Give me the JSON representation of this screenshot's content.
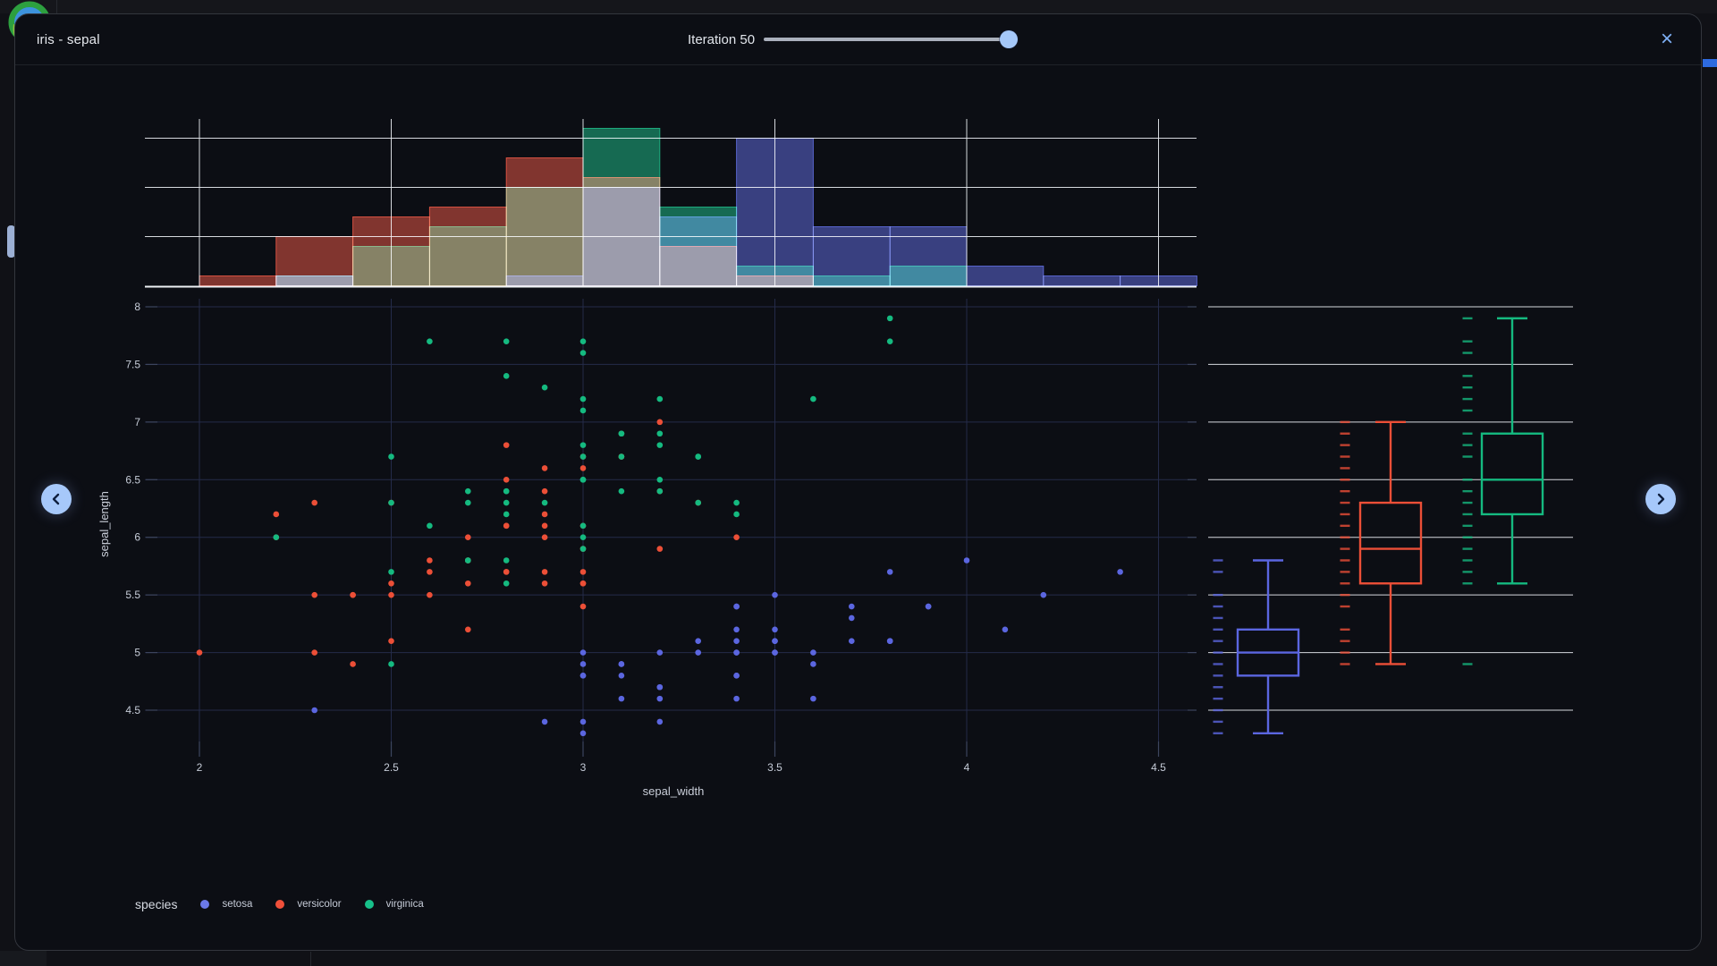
{
  "header": {
    "title": "iris - sepal",
    "iteration": {
      "label": "Iteration 50",
      "value": 50,
      "min": 0,
      "max": 50
    },
    "close_label": "×"
  },
  "nav": {
    "prev_label": "‹",
    "next_label": "›"
  },
  "legend": {
    "title": "species",
    "items": [
      {
        "label": "setosa",
        "color": "#6b79e8"
      },
      {
        "label": "versicolor",
        "color": "#f0503a"
      },
      {
        "label": "virginica",
        "color": "#17c08a"
      }
    ]
  },
  "chart_data": {
    "type": "scatter",
    "title": "iris - sepal",
    "xlabel": "sepal_width",
    "ylabel": "sepal_length",
    "x_ticks": [
      2,
      2.5,
      3,
      3.5,
      4,
      4.5
    ],
    "y_ticks": [
      4.5,
      5,
      5.5,
      6,
      6.5,
      7,
      7.5,
      8
    ],
    "xlim": [
      1.88,
      4.6
    ],
    "ylim": [
      4.23,
      8.07
    ],
    "grid": true,
    "legend_position": "bottom",
    "series": [
      {
        "name": "setosa",
        "color": "#5b66e0",
        "points": [
          [
            3.5,
            5.1
          ],
          [
            3.0,
            4.9
          ],
          [
            3.2,
            4.7
          ],
          [
            3.1,
            4.6
          ],
          [
            3.6,
            5.0
          ],
          [
            3.9,
            5.4
          ],
          [
            3.4,
            4.6
          ],
          [
            3.4,
            5.0
          ],
          [
            2.9,
            4.4
          ],
          [
            3.1,
            4.9
          ],
          [
            3.7,
            5.4
          ],
          [
            3.4,
            4.8
          ],
          [
            3.0,
            4.8
          ],
          [
            3.0,
            4.3
          ],
          [
            4.0,
            5.8
          ],
          [
            4.4,
            5.7
          ],
          [
            3.9,
            5.4
          ],
          [
            3.5,
            5.1
          ],
          [
            3.8,
            5.7
          ],
          [
            3.8,
            5.1
          ],
          [
            3.4,
            5.4
          ],
          [
            3.7,
            5.1
          ],
          [
            3.6,
            4.6
          ],
          [
            3.3,
            5.1
          ],
          [
            3.4,
            4.8
          ],
          [
            3.0,
            5.0
          ],
          [
            3.4,
            5.0
          ],
          [
            3.5,
            5.2
          ],
          [
            3.4,
            5.2
          ],
          [
            3.2,
            4.7
          ],
          [
            3.1,
            4.8
          ],
          [
            3.4,
            5.4
          ],
          [
            4.1,
            5.2
          ],
          [
            4.2,
            5.5
          ],
          [
            3.1,
            4.9
          ],
          [
            3.2,
            5.0
          ],
          [
            3.5,
            5.5
          ],
          [
            3.6,
            4.9
          ],
          [
            3.0,
            4.4
          ],
          [
            3.4,
            5.1
          ],
          [
            3.5,
            5.0
          ],
          [
            2.3,
            4.5
          ],
          [
            3.2,
            4.4
          ],
          [
            3.5,
            5.0
          ],
          [
            3.8,
            5.1
          ],
          [
            3.0,
            4.8
          ],
          [
            3.8,
            5.1
          ],
          [
            3.2,
            4.6
          ],
          [
            3.7,
            5.3
          ],
          [
            3.3,
            5.0
          ]
        ]
      },
      {
        "name": "versicolor",
        "color": "#ec4f37",
        "points": [
          [
            3.2,
            7.0
          ],
          [
            3.2,
            6.4
          ],
          [
            3.1,
            6.9
          ],
          [
            2.3,
            5.5
          ],
          [
            2.8,
            6.5
          ],
          [
            2.8,
            5.7
          ],
          [
            3.3,
            6.3
          ],
          [
            2.4,
            4.9
          ],
          [
            2.9,
            6.6
          ],
          [
            2.7,
            5.2
          ],
          [
            2.0,
            5.0
          ],
          [
            3.0,
            5.9
          ],
          [
            2.2,
            6.0
          ],
          [
            2.9,
            6.1
          ],
          [
            2.9,
            5.6
          ],
          [
            3.1,
            6.7
          ],
          [
            3.0,
            5.6
          ],
          [
            2.7,
            5.8
          ],
          [
            2.2,
            6.2
          ],
          [
            2.5,
            5.6
          ],
          [
            3.2,
            5.9
          ],
          [
            2.8,
            6.1
          ],
          [
            2.5,
            6.3
          ],
          [
            2.8,
            6.1
          ],
          [
            2.9,
            6.4
          ],
          [
            3.0,
            6.6
          ],
          [
            2.8,
            6.8
          ],
          [
            3.0,
            6.7
          ],
          [
            2.9,
            6.0
          ],
          [
            2.6,
            5.7
          ],
          [
            2.4,
            5.5
          ],
          [
            2.4,
            5.5
          ],
          [
            2.7,
            5.8
          ],
          [
            2.7,
            6.0
          ],
          [
            3.0,
            5.4
          ],
          [
            3.4,
            6.0
          ],
          [
            3.1,
            6.7
          ],
          [
            2.3,
            6.3
          ],
          [
            3.0,
            5.6
          ],
          [
            2.5,
            5.5
          ],
          [
            2.6,
            5.5
          ],
          [
            3.0,
            6.1
          ],
          [
            2.6,
            5.8
          ],
          [
            2.3,
            5.0
          ],
          [
            2.7,
            5.6
          ],
          [
            3.0,
            5.7
          ],
          [
            2.9,
            5.7
          ],
          [
            2.9,
            6.2
          ],
          [
            2.5,
            5.1
          ],
          [
            2.8,
            5.7
          ]
        ]
      },
      {
        "name": "virginica",
        "color": "#15ba80",
        "points": [
          [
            3.3,
            6.3
          ],
          [
            2.7,
            5.8
          ],
          [
            3.0,
            7.1
          ],
          [
            2.9,
            6.3
          ],
          [
            3.0,
            6.5
          ],
          [
            3.0,
            7.6
          ],
          [
            2.5,
            4.9
          ],
          [
            2.9,
            7.3
          ],
          [
            2.5,
            6.7
          ],
          [
            3.6,
            7.2
          ],
          [
            3.2,
            6.5
          ],
          [
            2.7,
            6.4
          ],
          [
            3.0,
            6.8
          ],
          [
            2.5,
            5.7
          ],
          [
            2.8,
            5.8
          ],
          [
            3.2,
            6.4
          ],
          [
            3.0,
            6.5
          ],
          [
            3.8,
            7.7
          ],
          [
            2.6,
            7.7
          ],
          [
            2.2,
            6.0
          ],
          [
            3.2,
            6.9
          ],
          [
            2.8,
            5.6
          ],
          [
            2.8,
            7.7
          ],
          [
            2.7,
            6.3
          ],
          [
            3.3,
            6.7
          ],
          [
            3.2,
            7.2
          ],
          [
            2.8,
            6.2
          ],
          [
            3.0,
            6.1
          ],
          [
            2.8,
            6.4
          ],
          [
            3.0,
            7.2
          ],
          [
            2.8,
            7.4
          ],
          [
            3.8,
            7.9
          ],
          [
            2.8,
            6.4
          ],
          [
            2.8,
            6.3
          ],
          [
            2.6,
            6.1
          ],
          [
            3.0,
            7.7
          ],
          [
            3.4,
            6.3
          ],
          [
            3.1,
            6.4
          ],
          [
            3.0,
            6.0
          ],
          [
            3.1,
            6.9
          ],
          [
            3.1,
            6.7
          ],
          [
            3.1,
            6.9
          ],
          [
            2.7,
            5.8
          ],
          [
            3.2,
            6.8
          ],
          [
            3.3,
            6.7
          ],
          [
            3.0,
            6.7
          ],
          [
            2.5,
            6.3
          ],
          [
            3.0,
            6.5
          ],
          [
            3.4,
            6.2
          ],
          [
            3.0,
            5.9
          ]
        ]
      }
    ],
    "marginal_histogram": {
      "axis": "x",
      "bin_start": 2.0,
      "bin_width": 0.2,
      "grid_counts": [
        5,
        10,
        15
      ],
      "draw_order": [
        "versicolor",
        "virginica",
        "setosa"
      ],
      "counts": {
        "versicolor": [
          1,
          5,
          7,
          8,
          13,
          11,
          4,
          1,
          0,
          0,
          0,
          0,
          0
        ],
        "virginica": [
          0,
          1,
          4,
          6,
          10,
          16,
          8,
          2,
          1,
          2,
          0,
          0,
          0
        ],
        "setosa": [
          0,
          1,
          0,
          0,
          1,
          10,
          7,
          15,
          6,
          6,
          2,
          1,
          1
        ]
      }
    },
    "marginal_box": {
      "axis": "y",
      "stats": [
        {
          "name": "setosa",
          "min": 4.3,
          "q1": 4.8,
          "median": 5.0,
          "q3": 5.2,
          "max": 5.8,
          "outliers": []
        },
        {
          "name": "versicolor",
          "min": 4.9,
          "q1": 5.6,
          "median": 5.9,
          "q3": 6.3,
          "max": 7.0,
          "outliers": []
        },
        {
          "name": "virginica",
          "min": 5.6,
          "q1": 6.2,
          "median": 6.5,
          "q3": 6.9,
          "max": 7.9,
          "outliers": [
            4.9
          ]
        }
      ],
      "rug": true
    }
  }
}
